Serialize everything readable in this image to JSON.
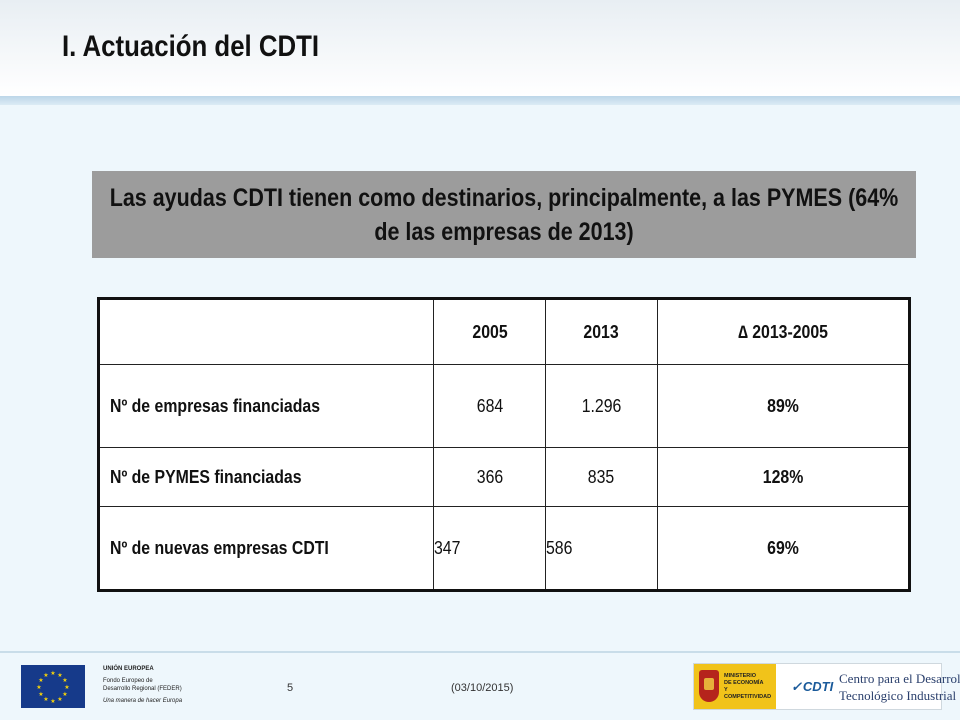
{
  "slide": {
    "title": "I. Actuación del CDTI",
    "callout": "Las ayudas CDTI tienen como destinarios, principalmente, a las PYMES (64% de las empresas de 2013)"
  },
  "table": {
    "headers": [
      "",
      "2005",
      "2013",
      "∆ 2013-2005"
    ],
    "rows": [
      {
        "label": "Nº de empresas financiadas",
        "v2005": "684",
        "v2013": "1.296",
        "delta": "89%"
      },
      {
        "label": "Nº de PYMES financiadas",
        "v2005": "366",
        "v2013": "835",
        "delta": "128%"
      },
      {
        "label": "Nº de nuevas empresas CDTI",
        "v2005": "347",
        "v2013": "586",
        "delta": "69%"
      }
    ]
  },
  "footer": {
    "eu_title": "UNIÓN EUROPEA",
    "eu_line1": "Fondo Europeo de",
    "eu_line2": "Desarrollo Regional (FEDER)",
    "eu_motto": "Una manera de hacer Europa",
    "page_number": "5",
    "date": "(03/10/2015)",
    "ministerio_line1": "MINISTERIO",
    "ministerio_line2": "DE ECONOMÍA",
    "ministerio_line3": "Y COMPETITIVIDAD",
    "cdti_logo": "CDTI",
    "cdti_name_line1": "Centro para el Desarrollo",
    "cdti_name_line2": "Tecnológico Industrial"
  },
  "colors": {
    "background": "#eef7fc",
    "callout_bg": "#9c9c9c",
    "eu_blue": "#163a8a",
    "eu_star": "#f5d20a",
    "ministerio_yellow": "#f1c31a",
    "cdti_blue": "#1a5a9a"
  }
}
